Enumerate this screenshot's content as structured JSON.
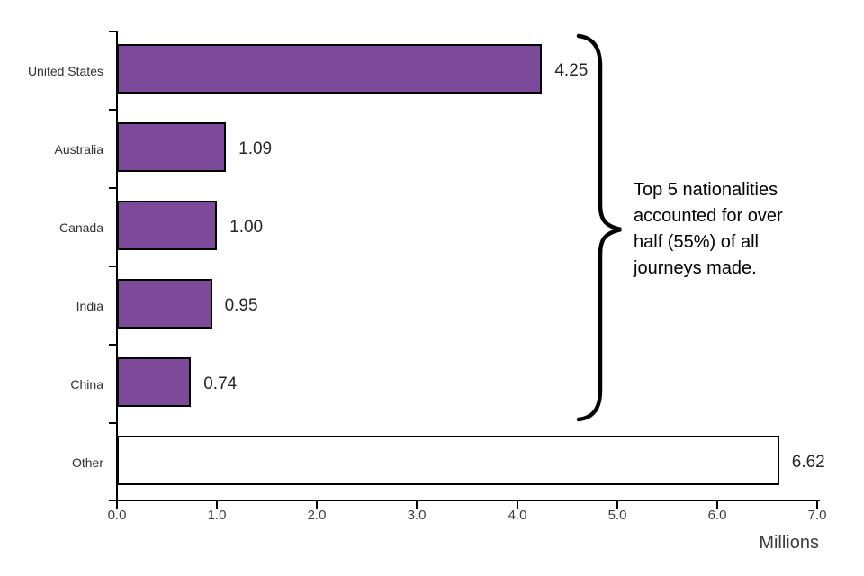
{
  "chart_data": {
    "type": "bar",
    "orientation": "horizontal",
    "title": "",
    "categories": [
      "United States",
      "Australia",
      "Canada",
      "India",
      "China",
      "Other"
    ],
    "values": [
      4.25,
      1.09,
      1.0,
      0.95,
      0.74,
      6.62
    ],
    "value_labels": [
      "4.25",
      "1.09",
      "1.00",
      "0.95",
      "0.74",
      "6.62"
    ],
    "bar_colors": [
      "#7D4A9B",
      "#7D4A9B",
      "#7D4A9B",
      "#7D4A9B",
      "#7D4A9B",
      "#FFFFFF"
    ],
    "xlabel": "Millions",
    "ylabel": "",
    "xlim": [
      0,
      7
    ],
    "x_ticks": [
      "0.0",
      "1.0",
      "2.0",
      "3.0",
      "4.0",
      "5.0",
      "6.0",
      "7.0"
    ],
    "grid": false,
    "legend": "none"
  },
  "annotation": {
    "text": "Top 5 nationalities accounted for over half (55%) of all journeys made.",
    "lines": [
      "Top 5 nationalities",
      "accounted for over",
      "half (55%) of all",
      "journeys made."
    ]
  },
  "colors": {
    "bar_fill": "#7D4A9B",
    "bar_border": "#000000",
    "axis": "#000000",
    "tick_text": "#3d3d3d",
    "annotation_text": "#000000"
  }
}
